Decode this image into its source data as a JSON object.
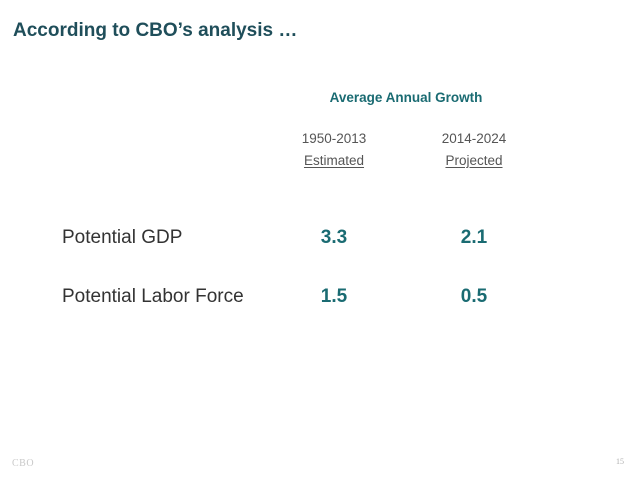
{
  "slide": {
    "title": "According to CBO’s analysis …",
    "group_header": "Average Annual Growth",
    "columns": [
      {
        "period": "1950-2013",
        "kind": "Estimated"
      },
      {
        "period": "2014-2024",
        "kind": "Projected"
      }
    ],
    "rows": [
      {
        "label": "Potential GDP",
        "values": [
          "3.3",
          "2.1"
        ]
      },
      {
        "label": "Potential Labor Force",
        "values": [
          "1.5",
          "0.5"
        ]
      }
    ]
  },
  "footer": {
    "logo_text": "CBO",
    "page_number": "15"
  },
  "colors": {
    "title": "#1f4e5a",
    "accent_teal": "#1a6b72",
    "body_text": "#333333",
    "muted_text": "#555555"
  }
}
